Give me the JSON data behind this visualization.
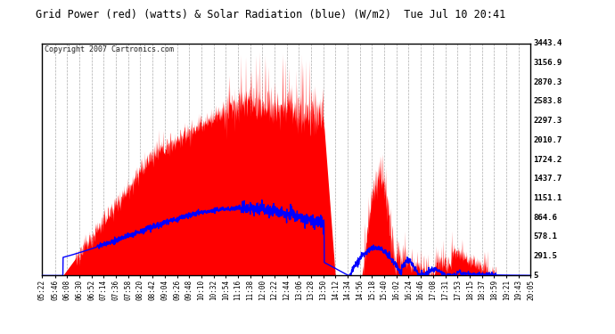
{
  "title": "Grid Power (red) (watts) & Solar Radiation (blue) (W/m2)  Tue Jul 10 20:41",
  "copyright": "Copyright 2007 Cartronics.com",
  "background_color": "#ffffff",
  "plot_bg_color": "#ffffff",
  "grid_color": "#999999",
  "red_color": "#ff0000",
  "blue_color": "#0000ff",
  "y_ticks": [
    5.0,
    291.5,
    578.1,
    864.6,
    1151.1,
    1437.7,
    1724.2,
    2010.7,
    2297.3,
    2583.8,
    2870.3,
    3156.9,
    3443.4
  ],
  "ylim": [
    5.0,
    3443.4
  ],
  "xlim_min": 0,
  "xlim_max": 883,
  "x_labels": [
    "05:22",
    "05:46",
    "06:08",
    "06:30",
    "06:52",
    "07:14",
    "07:36",
    "07:58",
    "08:20",
    "08:42",
    "09:04",
    "09:26",
    "09:48",
    "10:10",
    "10:32",
    "10:54",
    "11:16",
    "11:38",
    "12:00",
    "12:22",
    "12:44",
    "13:06",
    "13:28",
    "13:50",
    "14:12",
    "14:34",
    "14:56",
    "15:18",
    "15:40",
    "16:02",
    "16:24",
    "16:46",
    "17:08",
    "17:31",
    "17:53",
    "18:15",
    "18:37",
    "18:59",
    "19:21",
    "19:43",
    "20:05"
  ],
  "start_hhmm": "05:22"
}
